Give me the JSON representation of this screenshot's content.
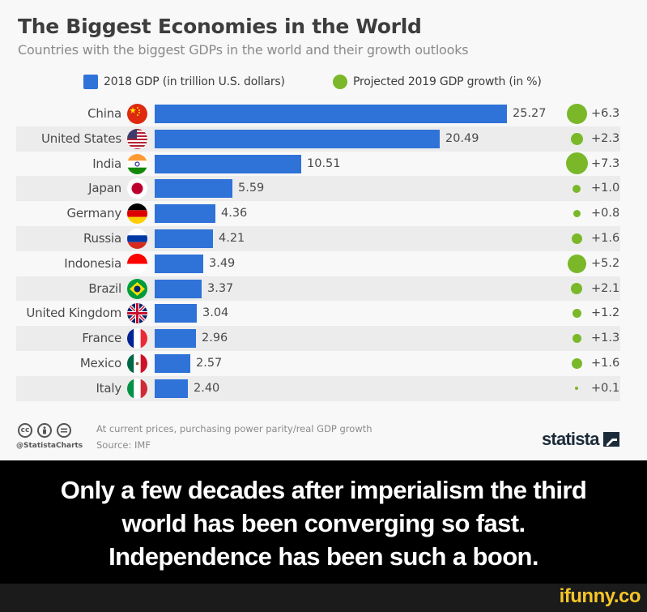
{
  "chart": {
    "title": "The Biggest Economies in the World",
    "subtitle": "Countries with the biggest GDPs in the world and their growth outlooks",
    "legend": {
      "gdp_label": "2018 GDP (in trillion U.S. dollars)",
      "growth_label": "Projected 2019 GDP growth (in %)"
    },
    "colors": {
      "bar": "#2f72d8",
      "dot": "#7ab829",
      "stripe": "#ececec"
    },
    "rows": [
      {
        "country": "China",
        "flag": "china-flag-icon",
        "gdp": "25.27",
        "growth": "+6.3"
      },
      {
        "country": "United States",
        "flag": "us-flag-icon",
        "gdp": "20.49",
        "growth": "+2.3"
      },
      {
        "country": "India",
        "flag": "india-flag-icon",
        "gdp": "10.51",
        "growth": "+7.3"
      },
      {
        "country": "Japan",
        "flag": "japan-flag-icon",
        "gdp": "5.59",
        "growth": "+1.0"
      },
      {
        "country": "Germany",
        "flag": "germany-flag-icon",
        "gdp": "4.36",
        "growth": "+0.8"
      },
      {
        "country": "Russia",
        "flag": "russia-flag-icon",
        "gdp": "4.21",
        "growth": "+1.6"
      },
      {
        "country": "Indonesia",
        "flag": "indonesia-flag-icon",
        "gdp": "3.49",
        "growth": "+5.2"
      },
      {
        "country": "Brazil",
        "flag": "brazil-flag-icon",
        "gdp": "3.37",
        "growth": "+2.1"
      },
      {
        "country": "United Kingdom",
        "flag": "uk-flag-icon",
        "gdp": "3.04",
        "growth": "+1.2"
      },
      {
        "country": "France",
        "flag": "france-flag-icon",
        "gdp": "2.96",
        "growth": "+1.3"
      },
      {
        "country": "Mexico",
        "flag": "mexico-flag-icon",
        "gdp": "2.57",
        "growth": "+1.6"
      },
      {
        "country": "Italy",
        "flag": "italy-flag-icon",
        "gdp": "2.40",
        "growth": "+0.1"
      }
    ],
    "footer": {
      "note": "At current prices, purchasing power parity/real GDP growth",
      "source": "Source: IMF",
      "handle": "@StatistaCharts",
      "brand": "statista",
      "license_icons": [
        "cc",
        "by",
        "nd"
      ]
    }
  },
  "meme": {
    "lines": [
      "Only a few decades after imperialism the third",
      "world has been converging so fast.",
      "Independence has been such a boon."
    ],
    "watermark": "ifunny.co"
  },
  "chart_data": {
    "type": "bar",
    "orientation": "horizontal",
    "title": "The Biggest Economies in the World",
    "subtitle": "Countries with the biggest GDPs in the world and their growth outlooks",
    "categories": [
      "China",
      "United States",
      "India",
      "Japan",
      "Germany",
      "Russia",
      "Indonesia",
      "Brazil",
      "United Kingdom",
      "France",
      "Mexico",
      "Italy"
    ],
    "series": [
      {
        "name": "2018 GDP (in trillion U.S. dollars)",
        "type": "bar",
        "color": "#2f72d8",
        "values": [
          25.27,
          20.49,
          10.51,
          5.59,
          4.36,
          4.21,
          3.49,
          3.37,
          3.04,
          2.96,
          2.57,
          2.4
        ]
      },
      {
        "name": "Projected 2019 GDP growth (in %)",
        "type": "bubble",
        "color": "#7ab829",
        "values": [
          6.3,
          2.3,
          7.3,
          1.0,
          0.8,
          1.6,
          5.2,
          2.1,
          1.2,
          1.3,
          1.6,
          0.1
        ]
      }
    ],
    "xlabel": "",
    "ylabel": "",
    "legend_position": "top",
    "grid": false,
    "notes": "At current prices, purchasing power parity/real GDP growth",
    "source": "Source: IMF"
  }
}
